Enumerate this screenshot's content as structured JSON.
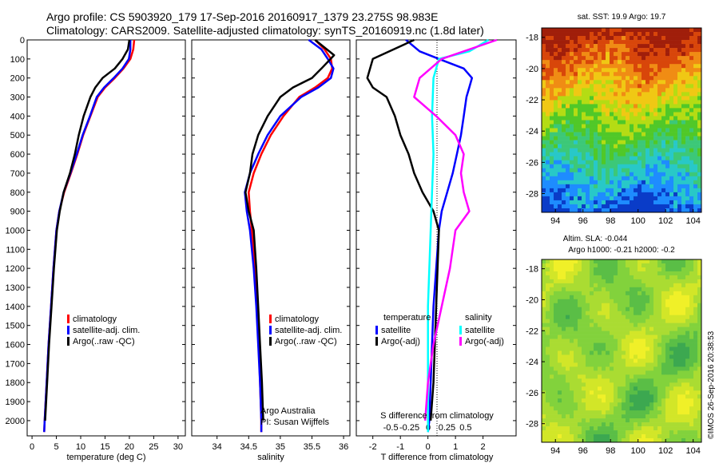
{
  "header": {
    "line1": "Argo profile: CS 5903920_179 17-Sep-2016 20160917_1379 23.275S 98.983E",
    "line2": "Climatology: CARS2009. Satellite-adjusted climatology: synTS_20160919.nc (1.8d later)"
  },
  "colors": {
    "climatology": "#ff0000",
    "satellite": "#0000ff",
    "argo": "#000000",
    "sat_s": "#00ffff",
    "argo_s": "#ff00ff"
  },
  "chart_data": [
    {
      "type": "line",
      "xlabel": "temperature (deg C)",
      "xlim": [
        -1,
        31.5
      ],
      "ylim": [
        0,
        2080
      ],
      "xticks": [
        "0",
        "5",
        "10",
        "15",
        "20",
        "25",
        "30"
      ],
      "yticks": [
        "0",
        "100",
        "200",
        "300",
        "400",
        "500",
        "600",
        "700",
        "800",
        "900",
        "1000",
        "1100",
        "1200",
        "1300",
        "1400",
        "1500",
        "1600",
        "1700",
        "1800",
        "1900",
        "2000"
      ],
      "legend": [
        "climatology",
        "satellite-adj. clim.",
        "Argo(..raw -QC)"
      ],
      "series": [
        {
          "name": "climatology",
          "color": "#ff0000",
          "points": [
            [
              21.0,
              0
            ],
            [
              20.8,
              50
            ],
            [
              20.2,
              100
            ],
            [
              18.8,
              150
            ],
            [
              17.0,
              200
            ],
            [
              15.0,
              250
            ],
            [
              13.5,
              300
            ],
            [
              12.0,
              400
            ],
            [
              10.5,
              500
            ],
            [
              9.3,
              600
            ],
            [
              8.0,
              700
            ],
            [
              6.6,
              800
            ],
            [
              5.6,
              900
            ],
            [
              5.0,
              1000
            ],
            [
              4.4,
              1200
            ],
            [
              3.9,
              1400
            ],
            [
              3.4,
              1600
            ],
            [
              3.0,
              1800
            ],
            [
              2.6,
              2000
            ],
            [
              2.5,
              2060
            ]
          ]
        },
        {
          "name": "satellite-adj. clim.",
          "color": "#0000ff",
          "points": [
            [
              20.2,
              0
            ],
            [
              20.2,
              50
            ],
            [
              19.9,
              100
            ],
            [
              18.6,
              150
            ],
            [
              16.8,
              200
            ],
            [
              14.8,
              250
            ],
            [
              13.3,
              300
            ],
            [
              11.9,
              400
            ],
            [
              10.4,
              500
            ],
            [
              9.2,
              600
            ],
            [
              7.9,
              700
            ],
            [
              6.5,
              800
            ],
            [
              5.6,
              900
            ],
            [
              5.0,
              1000
            ],
            [
              4.4,
              1200
            ],
            [
              3.9,
              1400
            ],
            [
              3.4,
              1600
            ],
            [
              3.0,
              1800
            ],
            [
              2.6,
              2000
            ],
            [
              2.5,
              2060
            ]
          ]
        },
        {
          "name": "Argo(..raw -QC)",
          "color": "#000000",
          "points": [
            [
              20.0,
              0
            ],
            [
              19.7,
              50
            ],
            [
              18.6,
              100
            ],
            [
              17.0,
              150
            ],
            [
              14.5,
              200
            ],
            [
              13.0,
              250
            ],
            [
              12.0,
              300
            ],
            [
              10.6,
              400
            ],
            [
              9.6,
              500
            ],
            [
              8.8,
              600
            ],
            [
              7.8,
              700
            ],
            [
              6.5,
              800
            ],
            [
              5.7,
              900
            ],
            [
              5.1,
              1000
            ],
            [
              4.5,
              1200
            ],
            [
              4.0,
              1400
            ],
            [
              3.5,
              1600
            ],
            [
              3.1,
              1800
            ],
            [
              2.7,
              2000
            ]
          ]
        }
      ]
    },
    {
      "type": "line",
      "xlabel": "salinity",
      "xlim": [
        33.6,
        36.1
      ],
      "ylim": [
        0,
        2080
      ],
      "xticks": [
        "34",
        "34.5",
        "35",
        "35.5",
        "36"
      ],
      "legend": [
        "climatology",
        "satellite-adj. clim.",
        "Argo(..raw -QC)"
      ],
      "note1": "Argo Australia",
      "note2": "PI: Susan Wijffels",
      "series": [
        {
          "name": "climatology",
          "color": "#ff0000",
          "points": [
            [
              35.55,
              0
            ],
            [
              35.7,
              50
            ],
            [
              35.8,
              100
            ],
            [
              35.82,
              150
            ],
            [
              35.75,
              200
            ],
            [
              35.55,
              250
            ],
            [
              35.3,
              300
            ],
            [
              35.05,
              400
            ],
            [
              34.85,
              500
            ],
            [
              34.7,
              600
            ],
            [
              34.58,
              700
            ],
            [
              34.5,
              800
            ],
            [
              34.52,
              900
            ],
            [
              34.55,
              1000
            ],
            [
              34.6,
              1200
            ],
            [
              34.63,
              1400
            ],
            [
              34.66,
              1600
            ],
            [
              34.68,
              1800
            ],
            [
              34.7,
              2000
            ],
            [
              34.7,
              2060
            ]
          ]
        },
        {
          "name": "satellite-adj. clim.",
          "color": "#0000ff",
          "points": [
            [
              35.45,
              0
            ],
            [
              35.65,
              50
            ],
            [
              35.75,
              100
            ],
            [
              35.84,
              150
            ],
            [
              35.8,
              200
            ],
            [
              35.6,
              250
            ],
            [
              35.33,
              300
            ],
            [
              35.0,
              400
            ],
            [
              34.8,
              500
            ],
            [
              34.65,
              600
            ],
            [
              34.52,
              700
            ],
            [
              34.44,
              800
            ],
            [
              34.47,
              900
            ],
            [
              34.52,
              1000
            ],
            [
              34.58,
              1200
            ],
            [
              34.62,
              1400
            ],
            [
              34.65,
              1600
            ],
            [
              34.68,
              1800
            ],
            [
              34.7,
              2000
            ],
            [
              34.7,
              2060
            ]
          ]
        },
        {
          "name": "Argo(..raw -QC)",
          "color": "#000000",
          "points": [
            [
              35.55,
              0
            ],
            [
              35.85,
              80
            ],
            [
              35.65,
              150
            ],
            [
              35.5,
              200
            ],
            [
              35.2,
              250
            ],
            [
              35.0,
              300
            ],
            [
              34.8,
              400
            ],
            [
              34.65,
              500
            ],
            [
              34.56,
              600
            ],
            [
              34.52,
              700
            ],
            [
              34.45,
              800
            ],
            [
              34.5,
              900
            ],
            [
              34.58,
              1000
            ],
            [
              34.62,
              1200
            ],
            [
              34.65,
              1400
            ],
            [
              34.68,
              1600
            ],
            [
              34.71,
              1800
            ],
            [
              34.73,
              2000
            ]
          ]
        }
      ]
    },
    {
      "type": "line",
      "xlabel": "T difference from climatology",
      "xlabel_top": "S difference from climatology",
      "xlim": [
        -2.6,
        3.2
      ],
      "ylim": [
        0,
        2080
      ],
      "xticks": [
        "-2",
        "-1",
        "0",
        "1",
        "2"
      ],
      "sticks": [
        "-0.5",
        "-0.25",
        "0",
        "0.25",
        "0.5"
      ],
      "legend": {
        "temperature": [
          "satellite",
          "Argo(-adj)"
        ],
        "salinity": [
          "satellite",
          "Argo(-adj)"
        ]
      },
      "legend_titles": [
        "temperature",
        "salinity"
      ],
      "series": [
        {
          "name": "satellite",
          "color": "#0000ff",
          "points": [
            [
              -0.8,
              0
            ],
            [
              -0.3,
              60
            ],
            [
              0.4,
              100
            ],
            [
              1.3,
              150
            ],
            [
              1.6,
              200
            ],
            [
              1.5,
              250
            ],
            [
              1.4,
              300
            ],
            [
              1.3,
              400
            ],
            [
              1.2,
              500
            ],
            [
              1.05,
              600
            ],
            [
              0.9,
              700
            ],
            [
              0.7,
              800
            ],
            [
              0.5,
              900
            ],
            [
              0.4,
              1000
            ],
            [
              0.3,
              1200
            ],
            [
              0.2,
              1400
            ],
            [
              0.15,
              1600
            ],
            [
              0.1,
              1800
            ],
            [
              0.05,
              2000
            ],
            [
              0.0,
              2060
            ]
          ]
        },
        {
          "name": "Argo(-adj)",
          "color": "#000000",
          "points": [
            [
              -0.5,
              0
            ],
            [
              -2.0,
              100
            ],
            [
              -2.2,
              200
            ],
            [
              -2.0,
              250
            ],
            [
              -1.5,
              300
            ],
            [
              -1.2,
              400
            ],
            [
              -1.0,
              500
            ],
            [
              -0.7,
              600
            ],
            [
              -0.5,
              700
            ],
            [
              -0.2,
              800
            ],
            [
              0.2,
              900
            ],
            [
              0.4,
              1000
            ],
            [
              0.35,
              1200
            ],
            [
              0.3,
              1400
            ],
            [
              0.25,
              1600
            ],
            [
              0.2,
              1800
            ],
            [
              0.1,
              2000
            ]
          ]
        },
        {
          "name": "satellite S",
          "color": "#00ffff",
          "points": [
            [
              2.2,
              0
            ],
            [
              1.5,
              60
            ],
            [
              0.4,
              100
            ],
            [
              0.2,
              200
            ],
            [
              0.15,
              400
            ],
            [
              0.2,
              600
            ],
            [
              0.15,
              800
            ],
            [
              0.1,
              1000
            ],
            [
              0.05,
              1200
            ],
            [
              0.0,
              1400
            ],
            [
              0.0,
              1600
            ],
            [
              0.0,
              1800
            ],
            [
              0.0,
              2060
            ]
          ]
        },
        {
          "name": "Argo(-adj) S",
          "color": "#ff00ff",
          "points": [
            [
              2.5,
              0
            ],
            [
              0.5,
              100
            ],
            [
              -0.3,
              200
            ],
            [
              -0.5,
              300
            ],
            [
              0.3,
              400
            ],
            [
              1.0,
              500
            ],
            [
              1.3,
              600
            ],
            [
              1.2,
              700
            ],
            [
              1.3,
              800
            ],
            [
              1.5,
              900
            ],
            [
              1.0,
              1000
            ],
            [
              0.8,
              1200
            ],
            [
              0.5,
              1400
            ],
            [
              0.2,
              1600
            ],
            [
              0.0,
              1800
            ],
            [
              -0.1,
              2000
            ]
          ]
        }
      ]
    },
    {
      "type": "heatmap",
      "title": "sat. SST: 19.9 Argo: 19.7",
      "xticks": [
        "94",
        "96",
        "98",
        "100",
        "102",
        "104"
      ],
      "yticks": [
        "-18",
        "-20",
        "-22",
        "-24",
        "-26",
        "-28"
      ],
      "xlim": [
        93,
        104.6
      ],
      "ylim": [
        -29.2,
        -17.4
      ],
      "colors": [
        "#0a3cc8",
        "#1e8cff",
        "#28c8c8",
        "#3cc878",
        "#50c828",
        "#b4dc14",
        "#f0c814",
        "#f08c14",
        "#d8460a",
        "#a01e0a"
      ]
    },
    {
      "type": "heatmap",
      "title1": "Altim. SLA: -0.044",
      "title2": "Argo h1000: -0.21 h2000: -0.2",
      "xticks": [
        "94",
        "96",
        "98",
        "100",
        "102",
        "104"
      ],
      "yticks": [
        "-18",
        "-20",
        "-22",
        "-24",
        "-26",
        "-28"
      ],
      "xlim": [
        93,
        104.6
      ],
      "ylim": [
        -29.2,
        -17.4
      ],
      "colors": [
        "#3ca850",
        "#5abe46",
        "#82d23c",
        "#aadc32",
        "#d2e628",
        "#f0f028"
      ]
    }
  ],
  "side_label": "©IMOS 26-Sep-2016 20:38:53"
}
